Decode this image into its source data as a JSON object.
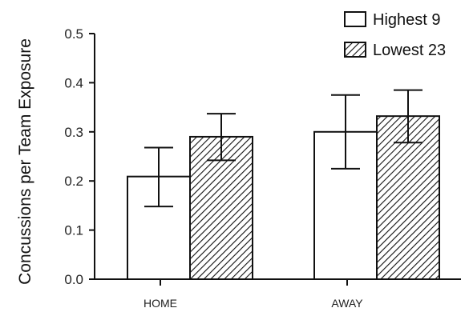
{
  "chart_data": {
    "type": "bar",
    "title": "",
    "xlabel": "",
    "ylabel": "Concussions per Team Exposure",
    "categories": [
      "HOME",
      "AWAY"
    ],
    "ylim": [
      0,
      0.5
    ],
    "yticks": [
      "0.0",
      "0.1",
      "0.2",
      "0.3",
      "0.4",
      "0.5"
    ],
    "grid": false,
    "legend_position": "top-right",
    "series": [
      {
        "name": "Highest 9",
        "pattern": "solid-white",
        "values": [
          0.209,
          0.3
        ],
        "error": [
          [
            0.148,
            0.268
          ],
          [
            0.225,
            0.375
          ]
        ]
      },
      {
        "name": "Lowest 23",
        "pattern": "diagonal-hatch",
        "values": [
          0.29,
          0.332
        ],
        "error": [
          [
            0.242,
            0.337
          ],
          [
            0.278,
            0.385
          ]
        ]
      }
    ],
    "colors": {
      "stroke": "#111111",
      "fill": "#ffffff"
    }
  }
}
